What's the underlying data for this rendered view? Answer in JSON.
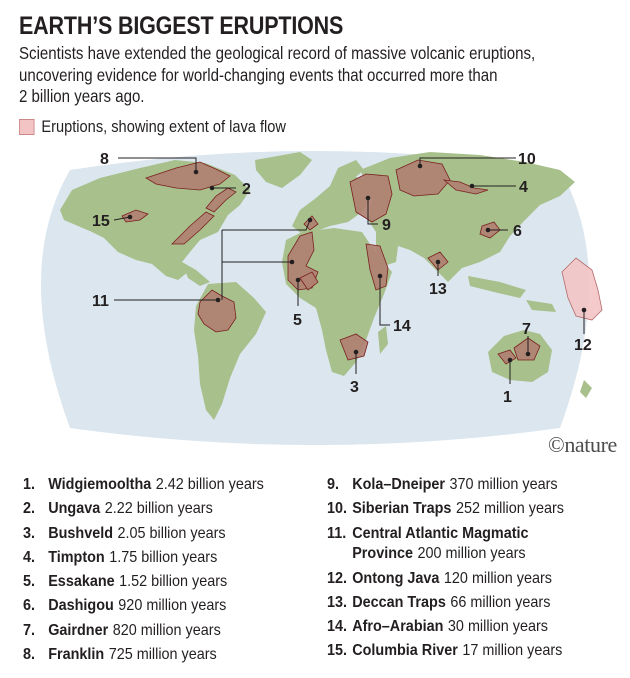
{
  "header": {
    "title": "EARTH’S BIGGEST ERUPTIONS",
    "subtitle_lines": [
      "Scientists have extended the geological record of massive volcanic eruptions,",
      "uncovering evidence for world-changing events that occurred more than",
      "2 billion years ago."
    ]
  },
  "legend": {
    "label": "Eruptions, showing extent of lava flow",
    "color": "#f3c4c4"
  },
  "colors": {
    "ocean": "#dbe6ee",
    "land": "#a7c08c",
    "lava_fill": "#b07f71",
    "lava_stroke": "#7a1f1f",
    "ontong_fill": "#f3c4c4"
  },
  "map": {
    "labels": [
      "1",
      "2",
      "3",
      "4",
      "5",
      "6",
      "7",
      "8",
      "9",
      "10",
      "11",
      "12",
      "13",
      "14",
      "15"
    ]
  },
  "credit": "©nature",
  "events": [
    {
      "num": "1.",
      "name": "Widgiemooltha",
      "age": "2.42 billion years"
    },
    {
      "num": "2.",
      "name": "Ungava",
      "age": "2.22 billion years"
    },
    {
      "num": "3.",
      "name": "Bushveld",
      "age": "2.05 billion years"
    },
    {
      "num": "4.",
      "name": "Timpton",
      "age": "1.75 billion years"
    },
    {
      "num": "5.",
      "name": "Essakane",
      "age": "1.52 billion years"
    },
    {
      "num": "6.",
      "name": "Dashigou",
      "age": "920 million years"
    },
    {
      "num": "7.",
      "name": "Gairdner",
      "age": "820 million years"
    },
    {
      "num": "8.",
      "name": "Franklin",
      "age": "725 million years"
    },
    {
      "num": "9.",
      "name": "Kola–Dneiper",
      "age": "370 million years"
    },
    {
      "num": "10.",
      "name": "Siberian Traps",
      "age": "252 million years"
    },
    {
      "num": "11.",
      "name": "Central Atlantic Magmatic",
      "name2": "Province",
      "age": "200 million years"
    },
    {
      "num": "12.",
      "name": "Ontong Java",
      "age": "120 million years"
    },
    {
      "num": "13.",
      "name": "Deccan Traps",
      "age": "66 million years"
    },
    {
      "num": "14.",
      "name": "Afro–Arabian",
      "age": "30 million years"
    },
    {
      "num": "15.",
      "name": "Columbia River",
      "age": "17 million years"
    }
  ]
}
